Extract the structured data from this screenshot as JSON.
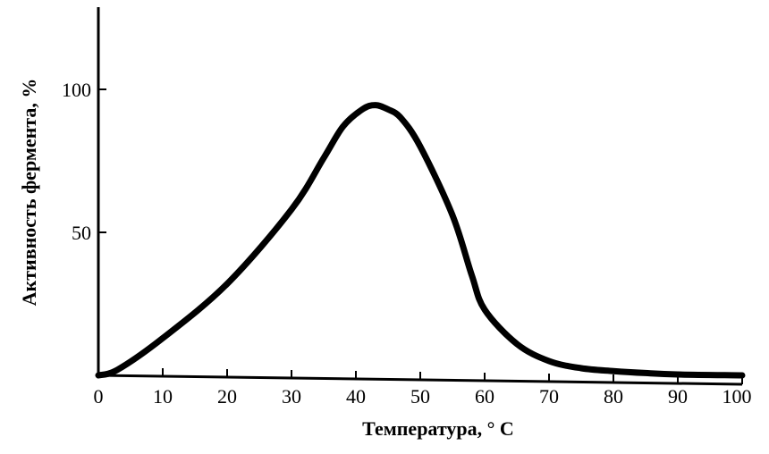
{
  "chart_data": {
    "type": "line",
    "title": "",
    "xlabel": "Температура, ° C",
    "ylabel": "Активность фермента, %",
    "xlim": [
      0,
      100
    ],
    "ylim": [
      0,
      100
    ],
    "xticks": [
      0,
      10,
      20,
      30,
      40,
      50,
      60,
      70,
      80,
      90,
      100
    ],
    "yticks": [
      50,
      100
    ],
    "grid": false,
    "colors": {
      "line": "#000000",
      "axis": "#000000"
    },
    "series": [
      {
        "x": [
          0,
          3,
          10,
          20,
          30,
          35,
          38,
          41,
          43,
          45,
          47,
          50,
          55,
          58,
          60,
          65,
          70,
          75,
          80,
          85,
          90,
          100
        ],
        "y": [
          0,
          2,
          13,
          32,
          58,
          76,
          87,
          93,
          94.5,
          93,
          90,
          80,
          56,
          35,
          23,
          11,
          5,
          2.5,
          1.5,
          0.8,
          0.3,
          0
        ]
      }
    ]
  }
}
